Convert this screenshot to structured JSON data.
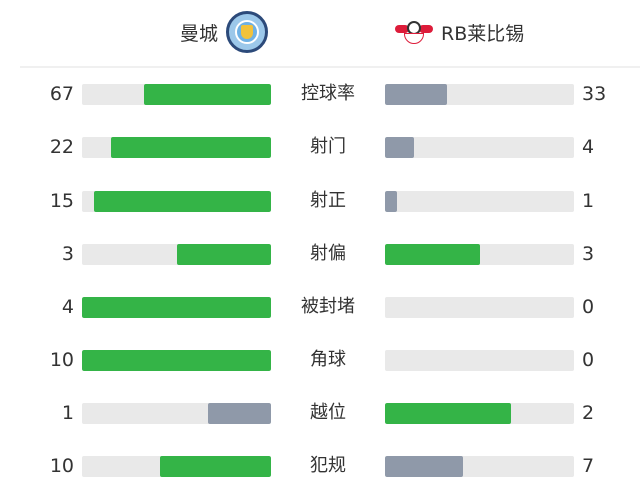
{
  "home": {
    "name": "曼城",
    "logo": "manchester-city-crest"
  },
  "away": {
    "name": "RB莱比锡",
    "logo": "rb-leipzig-crest"
  },
  "colors": {
    "leader": "#34b447",
    "trailer": "#8f99a9",
    "track": "#e9e9e9"
  },
  "stats": [
    {
      "label": "控球率",
      "home": 67,
      "away": 33
    },
    {
      "label": "射门",
      "home": 22,
      "away": 4
    },
    {
      "label": "射正",
      "home": 15,
      "away": 1
    },
    {
      "label": "射偏",
      "home": 3,
      "away": 3
    },
    {
      "label": "被封堵",
      "home": 4,
      "away": 0
    },
    {
      "label": "角球",
      "home": 10,
      "away": 0
    },
    {
      "label": "越位",
      "home": 1,
      "away": 2
    },
    {
      "label": "犯规",
      "home": 10,
      "away": 7
    }
  ]
}
